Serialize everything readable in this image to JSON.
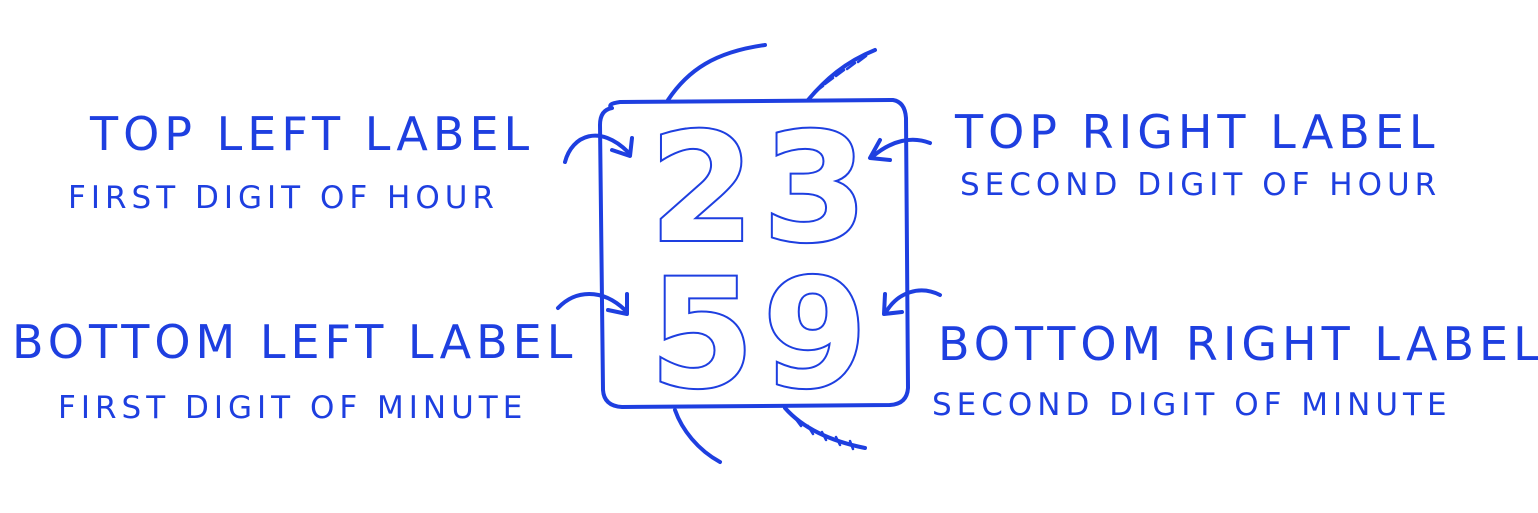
{
  "clock": {
    "hour_first_digit": "2",
    "hour_second_digit": "3",
    "minute_first_digit": "5",
    "minute_second_digit": "9"
  },
  "labels": {
    "top_left": {
      "title": "TOP LEFT LABEL",
      "subtitle": "FIRST DIGIT OF HOUR"
    },
    "top_right": {
      "title": "TOP RIGHT LABEL",
      "subtitle": "SECOND DIGIT OF HOUR"
    },
    "bottom_left": {
      "title": "BOTTOM LEFT LABEL",
      "subtitle": "FIRST DIGIT OF MINUTE"
    },
    "bottom_right": {
      "title": "BOTTOM RIGHT LABEL",
      "subtitle": "SECOND DIGIT OF MINUTE"
    }
  },
  "colors": {
    "ink": "#1e3fe0",
    "paper": "#ffffff"
  }
}
